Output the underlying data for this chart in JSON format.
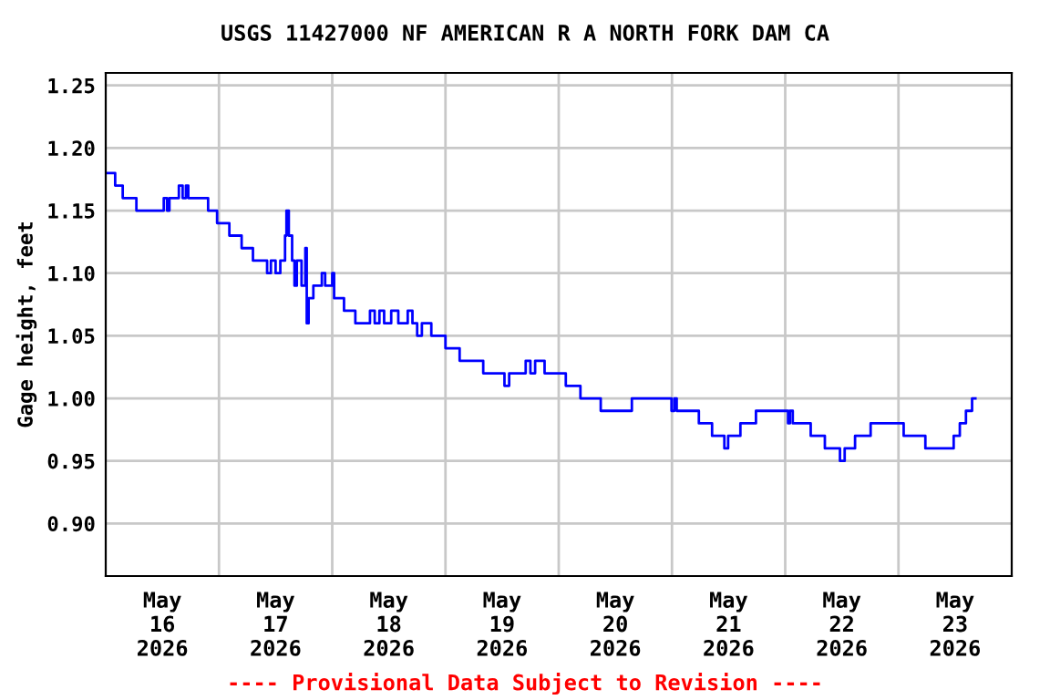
{
  "chart_data": {
    "type": "step",
    "title": "USGS 11427000 NF AMERICAN R A NORTH FORK DAM CA",
    "ylabel": "Gage height, feet",
    "annotations": [
      "---- Provisional Data Subject to Revision ----"
    ],
    "x": [
      "2026-05-16T00:00",
      "2026-05-16T02:00",
      "2026-05-16T03:36",
      "2026-05-16T06:30",
      "2026-05-16T12:18",
      "2026-05-16T13:00",
      "2026-05-16T13:30",
      "2026-05-16T15:30",
      "2026-05-16T16:18",
      "2026-05-16T17:00",
      "2026-05-16T17:30",
      "2026-05-16T21:42",
      "2026-05-16T23:36",
      "2026-05-17T02:12",
      "2026-05-17T04:48",
      "2026-05-17T07:12",
      "2026-05-17T10:12",
      "2026-05-17T11:00",
      "2026-05-17T12:00",
      "2026-05-17T13:00",
      "2026-05-17T14:00",
      "2026-05-17T14:18",
      "2026-05-17T14:48",
      "2026-05-17T15:30",
      "2026-05-17T16:00",
      "2026-05-17T16:30",
      "2026-05-17T17:30",
      "2026-05-17T18:18",
      "2026-05-17T18:36",
      "2026-05-17T19:00",
      "2026-05-17T20:00",
      "2026-05-17T21:48",
      "2026-05-17T22:30",
      "2026-05-18T00:00",
      "2026-05-18T00:24",
      "2026-05-18T02:30",
      "2026-05-18T04:54",
      "2026-05-18T08:00",
      "2026-05-18T09:00",
      "2026-05-18T10:00",
      "2026-05-18T11:00",
      "2026-05-18T12:30",
      "2026-05-18T14:00",
      "2026-05-18T16:00",
      "2026-05-18T17:00",
      "2026-05-18T18:00",
      "2026-05-18T19:00",
      "2026-05-18T21:00",
      "2026-05-19T00:00",
      "2026-05-19T03:00",
      "2026-05-19T08:00",
      "2026-05-19T12:30",
      "2026-05-19T13:30",
      "2026-05-19T17:00",
      "2026-05-19T18:00",
      "2026-05-19T19:00",
      "2026-05-19T21:00",
      "2026-05-20T01:30",
      "2026-05-20T04:36",
      "2026-05-20T08:54",
      "2026-05-20T15:30",
      "2026-05-20T23:54",
      "2026-05-21T00:30",
      "2026-05-21T01:00",
      "2026-05-21T05:42",
      "2026-05-21T08:30",
      "2026-05-21T11:06",
      "2026-05-21T11:54",
      "2026-05-21T14:30",
      "2026-05-21T17:48",
      "2026-05-22T00:36",
      "2026-05-22T01:00",
      "2026-05-22T01:36",
      "2026-05-22T05:24",
      "2026-05-22T08:24",
      "2026-05-22T11:36",
      "2026-05-22T12:36",
      "2026-05-22T14:48",
      "2026-05-22T18:06",
      "2026-05-23T01:06",
      "2026-05-23T05:42",
      "2026-05-23T11:42",
      "2026-05-23T13:00",
      "2026-05-23T14:18",
      "2026-05-23T15:36",
      "2026-05-23T16:18"
    ],
    "series": [
      {
        "color": "#0000ff",
        "values": [
          1.18,
          1.17,
          1.16,
          1.15,
          1.16,
          1.15,
          1.16,
          1.17,
          1.16,
          1.17,
          1.16,
          1.15,
          1.14,
          1.13,
          1.12,
          1.11,
          1.1,
          1.11,
          1.1,
          1.11,
          1.13,
          1.15,
          1.13,
          1.11,
          1.09,
          1.11,
          1.09,
          1.12,
          1.06,
          1.08,
          1.09,
          1.1,
          1.09,
          1.1,
          1.08,
          1.07,
          1.06,
          1.07,
          1.06,
          1.07,
          1.06,
          1.07,
          1.06,
          1.07,
          1.06,
          1.05,
          1.06,
          1.05,
          1.04,
          1.03,
          1.02,
          1.01,
          1.02,
          1.03,
          1.02,
          1.03,
          1.02,
          1.01,
          1.0,
          0.99,
          1.0,
          0.99,
          1.0,
          0.99,
          0.98,
          0.97,
          0.96,
          0.97,
          0.98,
          0.99,
          0.98,
          0.99,
          0.98,
          0.97,
          0.96,
          0.95,
          0.96,
          0.97,
          0.98,
          0.97,
          0.96,
          0.97,
          0.98,
          0.99,
          1.0,
          1.0
        ]
      }
    ],
    "xlim": [
      "2026-05-16",
      "2026-05-24"
    ],
    "xticks": [
      {
        "value": "2026-05-17",
        "label": null
      },
      {
        "value": "2026-05-18",
        "label": null
      },
      {
        "value": "2026-05-19",
        "label": null
      },
      {
        "value": "2026-05-20",
        "label": null
      },
      {
        "value": "2026-05-21",
        "label": null
      },
      {
        "value": "2026-05-22",
        "label": null
      },
      {
        "value": "2026-05-23",
        "label": null
      },
      {
        "value": "2026-05-16T12:00",
        "label": "May\n16\n2026"
      },
      {
        "value": "2026-05-17T12:00",
        "label": "May\n17\n2026"
      },
      {
        "value": "2026-05-18T12:00",
        "label": "May\n18\n2026"
      },
      {
        "value": "2026-05-19T12:00",
        "label": "May\n19\n2026"
      },
      {
        "value": "2026-05-20T12:00",
        "label": "May\n20\n2026"
      },
      {
        "value": "2026-05-21T12:00",
        "label": "May\n21\n2026"
      },
      {
        "value": "2026-05-22T12:00",
        "label": "May\n22\n2026"
      },
      {
        "value": "2026-05-23T12:00",
        "label": "May\n23\n2026"
      }
    ],
    "ylim": [
      0.858,
      1.26
    ],
    "yticks": [
      {
        "value": 0.9,
        "label": "0.90"
      },
      {
        "value": 0.95,
        "label": "0.95"
      },
      {
        "value": 1.0,
        "label": "1.00"
      },
      {
        "value": 1.05,
        "label": "1.05"
      },
      {
        "value": 1.1,
        "label": "1.10"
      },
      {
        "value": 1.15,
        "label": "1.15"
      },
      {
        "value": 1.2,
        "label": "1.20"
      },
      {
        "value": 1.25,
        "label": "1.25"
      }
    ],
    "grid": true
  }
}
